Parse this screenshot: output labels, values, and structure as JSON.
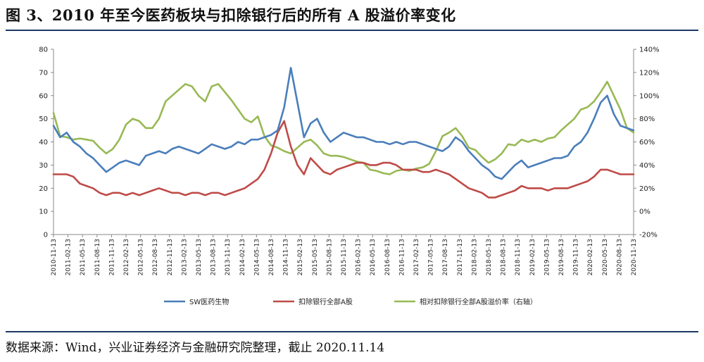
{
  "figure": {
    "title": "图 3、2010 年至今医药板块与扣除银行后的所有 A 股溢价率变化",
    "source": "数据来源：Wind，兴业证券经济与金融研究院整理，截止 2020.11.14"
  },
  "colors": {
    "sw": "#4a7ebb",
    "ab": "#be4b48",
    "prem": "#98b954",
    "axis": "#888888"
  },
  "chart_data": {
    "type": "line",
    "title": "",
    "xlabel": "",
    "ylabel": "",
    "y_left": {
      "min": 0,
      "max": 80,
      "step": 10,
      "ticks": [
        "0",
        "10",
        "20",
        "30",
        "40",
        "50",
        "60",
        "70",
        "80"
      ]
    },
    "y_right": {
      "min": -20,
      "max": 140,
      "step": 20,
      "ticks": [
        "-20%",
        "0%",
        "20%",
        "40%",
        "60%",
        "80%",
        "100%",
        "120%",
        "140%"
      ]
    },
    "grid": false,
    "legend_position": "bottom",
    "x_ticks": [
      "2010-11-13",
      "2011-02-13",
      "2011-05-13",
      "2011-08-13",
      "2011-11-13",
      "2012-02-13",
      "2012-05-13",
      "2012-08-13",
      "2012-11-13",
      "2013-02-13",
      "2013-05-13",
      "2013-08-13",
      "2013-11-13",
      "2014-02-13",
      "2014-05-13",
      "2014-08-13",
      "2014-11-13",
      "2015-02-13",
      "2015-05-13",
      "2015-08-13",
      "2015-11-13",
      "2016-02-13",
      "2016-05-13",
      "2016-08-13",
      "2016-11-13",
      "2017-02-13",
      "2017-05-13",
      "2017-08-13",
      "2017-11-13",
      "2018-02-13",
      "2018-05-13",
      "2018-08-13",
      "2018-11-13",
      "2019-02-13",
      "2019-05-13",
      "2019-08-13",
      "2019-11-13",
      "2020-02-13",
      "2020-05-13",
      "2020-08-13",
      "2020-11-13"
    ],
    "series": [
      {
        "name": "SW医药生物",
        "axis": "left",
        "values": [
          47,
          42,
          44,
          40,
          38,
          35,
          33,
          30,
          27,
          29,
          31,
          32,
          31,
          30,
          34,
          35,
          36,
          35,
          37,
          38,
          37,
          36,
          35,
          37,
          39,
          38,
          37,
          38,
          40,
          39,
          41,
          41,
          42,
          43,
          45,
          55,
          72,
          57,
          42,
          48,
          50,
          44,
          40,
          42,
          44,
          43,
          42,
          42,
          41,
          40,
          40,
          39,
          40,
          39,
          40,
          40,
          39,
          38,
          37,
          36,
          38,
          42,
          40,
          36,
          33,
          30,
          28,
          25,
          24,
          27,
          30,
          32,
          29,
          30,
          31,
          32,
          33,
          33,
          34,
          38,
          40,
          44,
          50,
          57,
          60,
          52,
          47,
          46,
          45
        ]
      },
      {
        "name": "扣除银行全部A股",
        "axis": "left",
        "values": [
          26,
          26,
          26,
          25,
          22,
          21,
          20,
          18,
          17,
          18,
          18,
          17,
          18,
          17,
          18,
          19,
          20,
          19,
          18,
          18,
          17,
          18,
          18,
          17,
          18,
          18,
          17,
          18,
          19,
          20,
          22,
          24,
          28,
          35,
          44,
          49,
          38,
          30,
          26,
          33,
          30,
          27,
          26,
          28,
          29,
          30,
          31,
          31,
          30,
          30,
          31,
          31,
          30,
          28,
          28,
          28,
          27,
          27,
          28,
          27,
          26,
          24,
          22,
          20,
          19,
          18,
          16,
          16,
          17,
          18,
          19,
          21,
          20,
          20,
          20,
          19,
          20,
          20,
          20,
          21,
          22,
          23,
          25,
          28,
          28,
          27,
          26,
          26,
          26
        ]
      },
      {
        "name": "相对扣除银行全部A股溢价率（右轴）",
        "axis": "right",
        "values": [
          85,
          65,
          64,
          62,
          63,
          62,
          61,
          55,
          50,
          54,
          62,
          75,
          80,
          78,
          72,
          72,
          80,
          95,
          100,
          105,
          110,
          108,
          100,
          95,
          108,
          110,
          103,
          96,
          88,
          80,
          77,
          82,
          65,
          57,
          55,
          52,
          50,
          55,
          60,
          62,
          57,
          50,
          48,
          48,
          47,
          45,
          43,
          42,
          36,
          35,
          33,
          32,
          35,
          36,
          35,
          37,
          38,
          41,
          52,
          65,
          68,
          72,
          65,
          55,
          53,
          47,
          42,
          45,
          50,
          58,
          57,
          62,
          60,
          62,
          60,
          63,
          64,
          70,
          75,
          80,
          88,
          90,
          95,
          103,
          112,
          100,
          88,
          72,
          68
        ]
      }
    ]
  },
  "legend": {
    "sw_label": "SW医药生物",
    "ab_label": "扣除银行全部A股",
    "prem_label": "相对扣除银行全部A股溢价率（右轴）"
  }
}
